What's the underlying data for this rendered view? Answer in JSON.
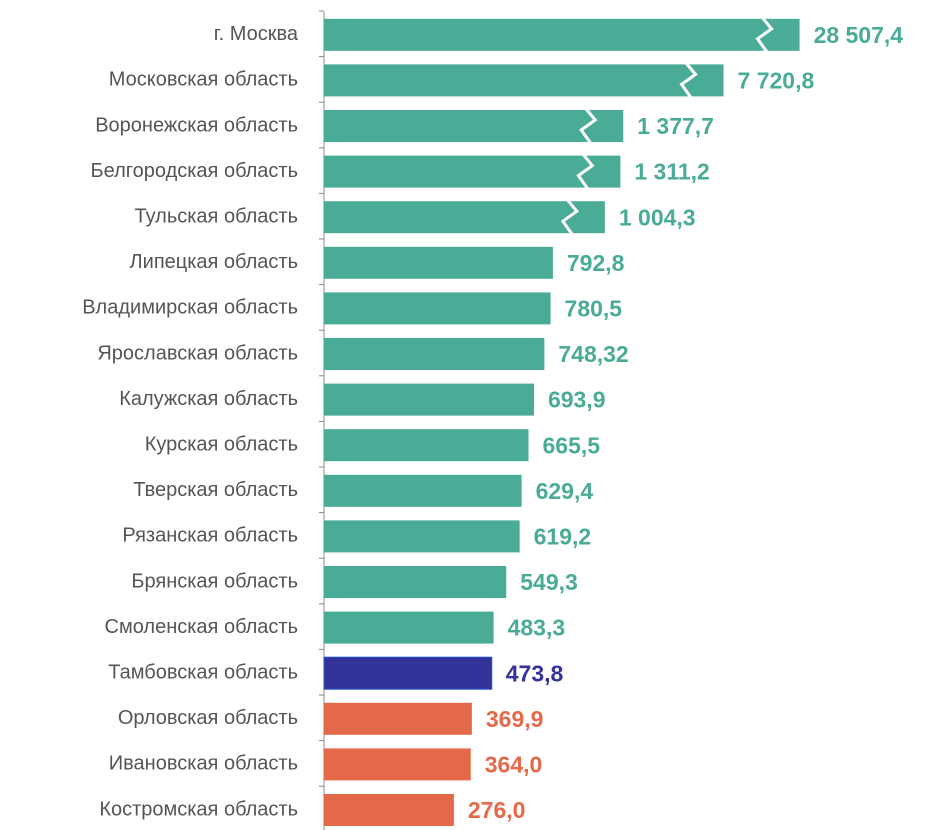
{
  "chart_data": {
    "type": "barh",
    "categories": [
      "г. Москва",
      "Московская область",
      "Воронежская область",
      "Белгородская область",
      "Тульская область",
      "Липецкая область",
      "Владимирская область",
      "Ярославская область",
      "Калужская область",
      "Курская область",
      "Тверская область",
      "Рязанская область",
      "Брянская область",
      "Смоленская область",
      "Тамбовская область",
      "Орловская область",
      "Ивановская область",
      "Костромская область"
    ],
    "values": [
      28507.4,
      7720.8,
      1377.7,
      1311.2,
      1004.3,
      792.8,
      780.5,
      748.32,
      693.9,
      665.5,
      629.4,
      619.2,
      549.3,
      483.3,
      473.8,
      369.9,
      364.0,
      276.0
    ],
    "value_labels": [
      "28 507,4",
      "7 720,8",
      "1 377,7",
      "1 311,2",
      "1 004,3",
      "792,8",
      "780,5",
      "748,32",
      "693,9",
      "665,5",
      "629,4",
      "619,2",
      "549,3",
      "483,3",
      "473,8",
      "369,9",
      "364,0",
      "276,0"
    ],
    "colors": [
      "#4aab96",
      "#4aab96",
      "#4aab96",
      "#4aab96",
      "#4aab96",
      "#4aab96",
      "#4aab96",
      "#4aab96",
      "#4aab96",
      "#4aab96",
      "#4aab96",
      "#4aab96",
      "#4aab96",
      "#4aab96",
      "#333399",
      "#e4694a",
      "#e4694a",
      "#e4694a"
    ]
  }
}
